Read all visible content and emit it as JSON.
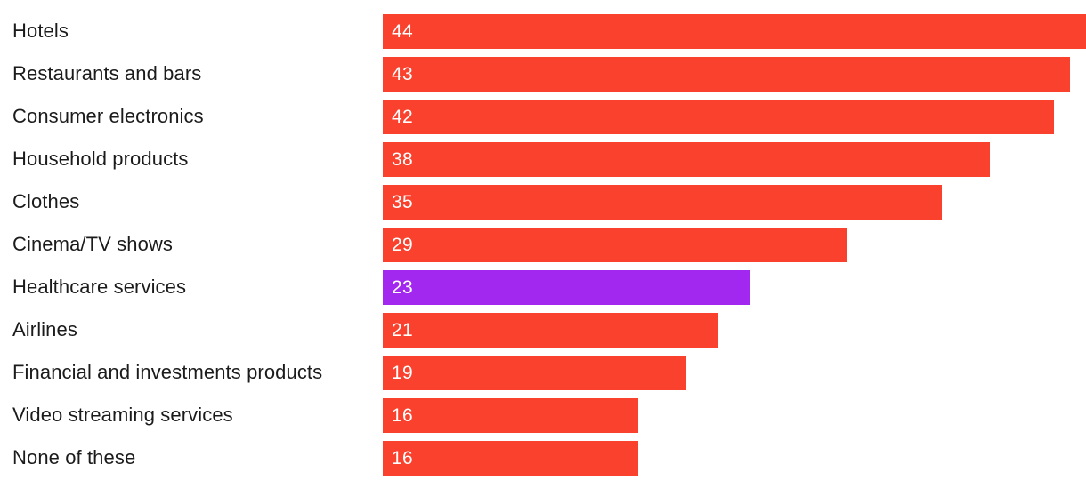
{
  "chart_data": {
    "type": "bar",
    "orientation": "horizontal",
    "title": "",
    "xlabel": "",
    "ylabel": "",
    "xlim": [
      0,
      44
    ],
    "grid": false,
    "legend": null,
    "bar_color": "#fa412d",
    "highlight_color": "#a228f0",
    "label_color": "#1b1b1b",
    "value_label_color": "#ffffff",
    "categories": [
      "Hotels",
      "Restaurants and bars",
      "Consumer electronics",
      "Household products",
      "Clothes",
      "Cinema/TV shows",
      "Healthcare services",
      "Airlines",
      "Financial and investments products",
      "Video streaming services",
      "None of these"
    ],
    "values": [
      44,
      43,
      42,
      38,
      35,
      29,
      23,
      21,
      19,
      16,
      16
    ],
    "value_labels": [
      "44",
      "43",
      "42",
      "38",
      "35",
      "29",
      "23",
      "21",
      "19",
      "16",
      "16"
    ],
    "highlighted_category": "Healthcare services",
    "highlighted_index": 6
  }
}
